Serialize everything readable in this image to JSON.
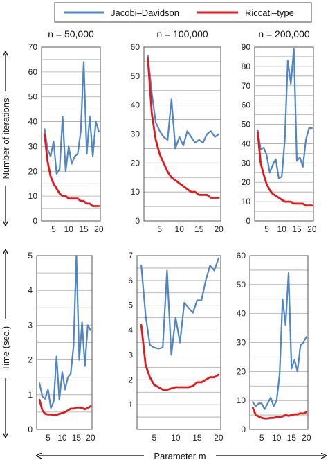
{
  "legend": {
    "jacobi": "Jacobi–Davidson",
    "riccati": "Riccati–type",
    "jacobi_color": "#4f86c6",
    "riccati_color": "#e31a1c"
  },
  "axis_labels": {
    "row1_y": "Number of iterations",
    "row2_y": "Time (sec.)",
    "x": "Parameter m"
  },
  "chart_data": [
    {
      "type": "line",
      "title": "n = 50,000",
      "x": [
        2,
        3,
        4,
        5,
        6,
        7,
        8,
        9,
        10,
        11,
        12,
        13,
        14,
        15,
        16,
        17,
        18,
        19,
        20
      ],
      "ylim": [
        0,
        70
      ],
      "yticks": [
        0,
        10,
        20,
        30,
        40,
        50,
        60,
        70
      ],
      "xlim": [
        1,
        20.5
      ],
      "xticks": [
        5,
        10,
        15,
        20
      ],
      "grid": true,
      "series": [
        {
          "name": "Jacobi–Davidson",
          "values": [
            37,
            29,
            26,
            32,
            19,
            21,
            42,
            20,
            30,
            23,
            26,
            27,
            36,
            64,
            27,
            42,
            26,
            40,
            36
          ]
        },
        {
          "name": "Riccati–type",
          "values": [
            35,
            24,
            18,
            15,
            13,
            11,
            10,
            10,
            9,
            9,
            9,
            9,
            8,
            8,
            7,
            7,
            6,
            6,
            6
          ]
        }
      ]
    },
    {
      "type": "line",
      "title": "n = 100,000",
      "x": [
        2,
        3,
        4,
        5,
        6,
        7,
        8,
        9,
        10,
        11,
        12,
        13,
        14,
        15,
        16,
        17,
        18,
        19,
        20
      ],
      "ylim": [
        0,
        60
      ],
      "yticks": [
        0,
        10,
        20,
        30,
        40,
        50,
        60
      ],
      "xlim": [
        1,
        20.5
      ],
      "xticks": [
        5,
        10,
        15,
        20
      ],
      "grid": true,
      "series": [
        {
          "name": "Jacobi–Davidson",
          "values": [
            57,
            44,
            34,
            31,
            29,
            28,
            42,
            25,
            29,
            26,
            31,
            29,
            27,
            28,
            27,
            30,
            31,
            29,
            30
          ]
        },
        {
          "name": "Riccati–type",
          "values": [
            56,
            37,
            28,
            23,
            20,
            17,
            15,
            14,
            13,
            12,
            11,
            10,
            10,
            9,
            9,
            9,
            8,
            8,
            8
          ]
        }
      ]
    },
    {
      "type": "line",
      "title": "n = 200,000",
      "x": [
        2,
        3,
        4,
        5,
        6,
        7,
        8,
        9,
        10,
        11,
        12,
        13,
        14,
        15,
        16,
        17,
        18,
        19,
        20
      ],
      "ylim": [
        0,
        90
      ],
      "yticks": [
        0,
        10,
        20,
        30,
        40,
        50,
        60,
        70,
        80,
        90
      ],
      "xlim": [
        1,
        20.5
      ],
      "xticks": [
        5,
        10,
        15,
        20
      ],
      "grid": true,
      "series": [
        {
          "name": "Jacobi–Davidson",
          "values": [
            47,
            37,
            38,
            34,
            25,
            29,
            32,
            22,
            23,
            42,
            83,
            71,
            89,
            31,
            33,
            28,
            42,
            48,
            48
          ]
        },
        {
          "name": "Riccati–type",
          "values": [
            46,
            30,
            24,
            19,
            16,
            14,
            13,
            12,
            11,
            10,
            10,
            10,
            9,
            9,
            9,
            9,
            8,
            8,
            8
          ]
        }
      ]
    },
    {
      "type": "line",
      "title": "",
      "x": [
        2,
        3,
        4,
        5,
        6,
        7,
        8,
        9,
        10,
        11,
        12,
        13,
        14,
        15,
        16,
        17,
        18,
        19,
        20
      ],
      "ylim": [
        0,
        5
      ],
      "yticks": [
        0,
        1,
        2,
        3,
        4,
        5
      ],
      "xlim": [
        1,
        20.5
      ],
      "xticks": [
        5,
        10,
        15,
        20
      ],
      "grid": true,
      "series": [
        {
          "name": "Jacobi–Davidson",
          "values": [
            1.33,
            0.95,
            0.88,
            1.15,
            0.62,
            0.8,
            2.1,
            0.85,
            1.65,
            1.15,
            1.5,
            1.6,
            2.4,
            5.0,
            2.0,
            3.08,
            1.82,
            3.0,
            2.85
          ]
        },
        {
          "name": "Riccati–type",
          "values": [
            0.85,
            0.55,
            0.45,
            0.43,
            0.43,
            0.42,
            0.42,
            0.45,
            0.47,
            0.5,
            0.55,
            0.6,
            0.6,
            0.63,
            0.63,
            0.62,
            0.58,
            0.62,
            0.67
          ]
        }
      ]
    },
    {
      "type": "line",
      "title": "",
      "x": [
        2,
        3,
        4,
        5,
        6,
        7,
        8,
        9,
        10,
        11,
        12,
        13,
        14,
        15,
        16,
        17,
        18,
        19,
        20
      ],
      "ylim": [
        0,
        7
      ],
      "yticks": [
        1,
        2,
        3,
        4,
        5,
        6,
        7
      ],
      "xlim": [
        1,
        20.5
      ],
      "xticks": [
        5,
        10,
        15,
        20
      ],
      "grid": true,
      "series": [
        {
          "name": "Jacobi–Davidson",
          "values": [
            6.6,
            4.6,
            3.4,
            3.3,
            3.25,
            3.3,
            6.4,
            3.0,
            4.5,
            3.5,
            5.1,
            4.9,
            4.7,
            5.2,
            5.2,
            6.0,
            6.6,
            6.4,
            6.9
          ]
        },
        {
          "name": "Riccati–type",
          "values": [
            4.2,
            2.6,
            2.1,
            1.8,
            1.7,
            1.6,
            1.6,
            1.65,
            1.7,
            1.7,
            1.7,
            1.7,
            1.75,
            1.9,
            1.9,
            2.0,
            2.1,
            2.1,
            2.2
          ]
        }
      ]
    },
    {
      "type": "line",
      "title": "",
      "x": [
        2,
        3,
        4,
        5,
        6,
        7,
        8,
        9,
        10,
        11,
        12,
        13,
        14,
        15,
        16,
        17,
        18,
        19,
        20
      ],
      "ylim": [
        0,
        60
      ],
      "yticks": [
        0,
        10,
        20,
        30,
        40,
        50,
        60
      ],
      "xlim": [
        1,
        20.5
      ],
      "xticks": [
        5,
        10,
        15,
        20
      ],
      "grid": true,
      "series": [
        {
          "name": "Jacobi–Davidson",
          "values": [
            9.5,
            8,
            9,
            9,
            7,
            9,
            11,
            8,
            10,
            19,
            45,
            36,
            54,
            21,
            24,
            20,
            29,
            30,
            32
          ]
        },
        {
          "name": "Riccati–type",
          "values": [
            7.5,
            5,
            4.5,
            4,
            3.8,
            3.8,
            4,
            4,
            4.3,
            4.3,
            4.5,
            5,
            4.7,
            5,
            5.2,
            5.2,
            5.6,
            5.5,
            6
          ]
        }
      ]
    }
  ]
}
